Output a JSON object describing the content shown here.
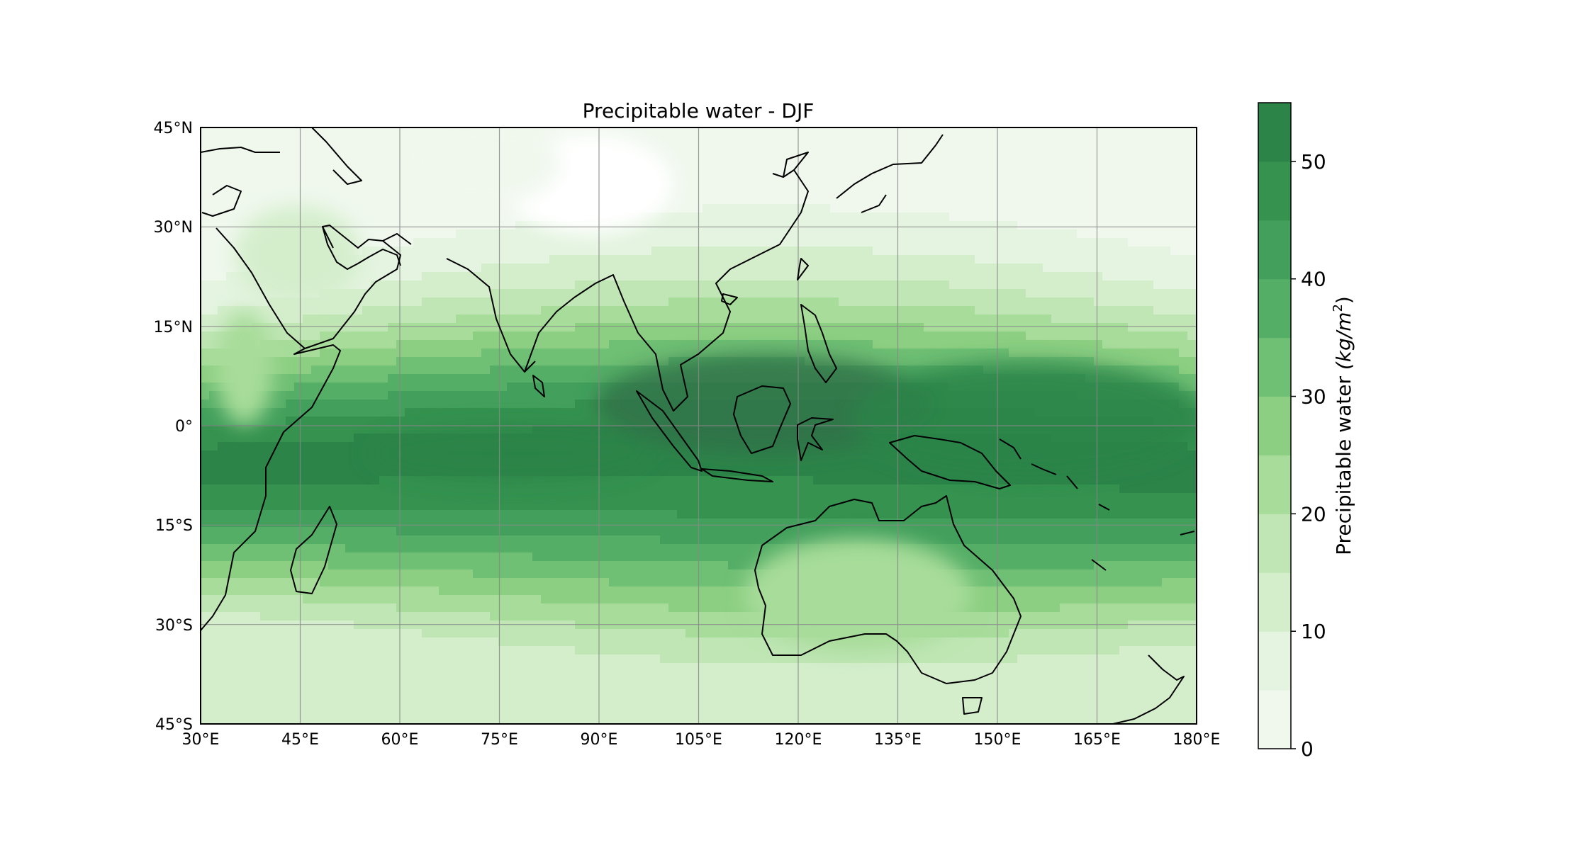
{
  "title": "Precipitable water - DJF",
  "x_tick_labels": [
    "30°E",
    "45°E",
    "60°E",
    "75°E",
    "90°E",
    "105°E",
    "120°E",
    "135°E",
    "150°E",
    "165°E",
    "180°E"
  ],
  "y_tick_labels": [
    "45°N",
    "30°N",
    "15°N",
    "0°",
    "15°S",
    "30°S",
    "45°S"
  ],
  "colorbar": {
    "label_main": "Precipitable water ",
    "label_unit": "(kg/m",
    "label_sup": "2",
    "label_close": ")",
    "levels": [
      0,
      5,
      10,
      15,
      20,
      25,
      30,
      35,
      40,
      45,
      50,
      55
    ],
    "tick_values": [
      0,
      10,
      20,
      30,
      40,
      50
    ],
    "tick_labels": [
      "0",
      "10",
      "20",
      "30",
      "40",
      "50"
    ],
    "colors": [
      "#f0f8ee",
      "#e4f4e0",
      "#d4eecc",
      "#bfe6b4",
      "#a7dc9a",
      "#8ccf82",
      "#6fbf74",
      "#55ae66",
      "#42a05c",
      "#35924f",
      "#2c8449",
      "#2e7048"
    ]
  },
  "map_data": {
    "lon_range": [
      30,
      180
    ],
    "lat_range": [
      -45,
      45
    ],
    "lon_ticks": [
      30,
      45,
      60,
      75,
      90,
      105,
      120,
      135,
      150,
      165,
      180
    ],
    "lat_ticks": [
      45,
      30,
      15,
      0,
      -15,
      -30,
      -45
    ],
    "grid": true,
    "colormap": "Greens",
    "field": "precipitable water, DJF mean"
  }
}
